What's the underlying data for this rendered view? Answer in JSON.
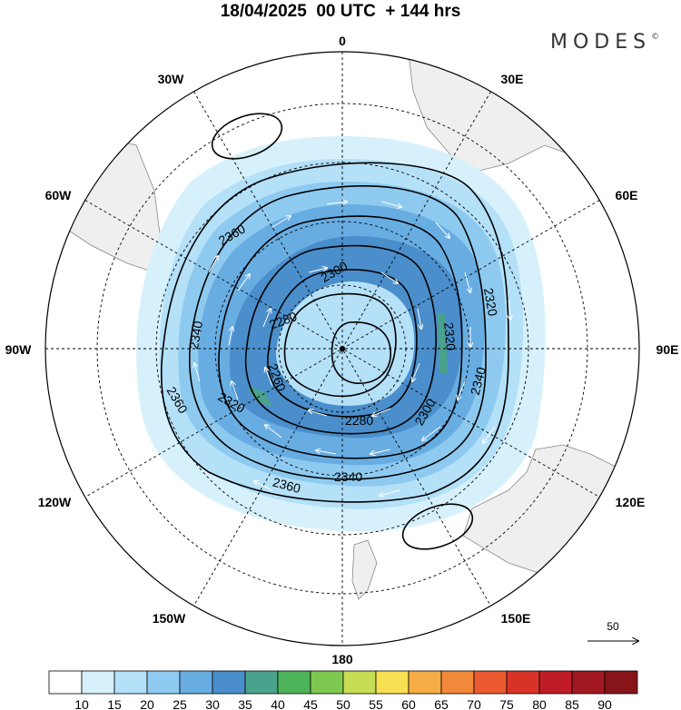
{
  "title": "18/04/2025  00 UTC  + 144 hrs",
  "brand": {
    "text": "MODES",
    "mark": "©"
  },
  "map": {
    "projection": "south-polar-stereographic",
    "meridian_labels": [
      {
        "text": "0",
        "lon": 0
      },
      {
        "text": "30E",
        "lon": 30
      },
      {
        "text": "60E",
        "lon": 60
      },
      {
        "text": "90E",
        "lon": 90
      },
      {
        "text": "120E",
        "lon": 120
      },
      {
        "text": "150E",
        "lon": 150
      },
      {
        "text": "180",
        "lon": 180
      },
      {
        "text": "150W",
        "lon": -150
      },
      {
        "text": "120W",
        "lon": -120
      },
      {
        "text": "90W",
        "lon": -90
      },
      {
        "text": "60W",
        "lon": -60
      },
      {
        "text": "30W",
        "lon": -30
      }
    ],
    "contour_labels": [
      "2260",
      "2280",
      "2300",
      "2320",
      "2340",
      "2360"
    ],
    "colors": {
      "land": "#efefef",
      "coast": "#888888",
      "grid": "#000000"
    }
  },
  "vector_key": {
    "label": "50"
  },
  "colorbar": {
    "ticks": [
      "10",
      "15",
      "20",
      "25",
      "30",
      "35",
      "40",
      "45",
      "50",
      "55",
      "60",
      "65",
      "70",
      "75",
      "80",
      "85",
      "90"
    ],
    "colors": [
      "#ffffff",
      "#d6f1fc",
      "#b4e0f8",
      "#8ecaf0",
      "#68ade2",
      "#4a8ecb",
      "#4aa28c",
      "#4db35a",
      "#7ec850",
      "#c7dd55",
      "#f7e053",
      "#f6ad47",
      "#f2883a",
      "#eb5a30",
      "#d93328",
      "#bf1c25",
      "#a11820",
      "#861418"
    ]
  }
}
